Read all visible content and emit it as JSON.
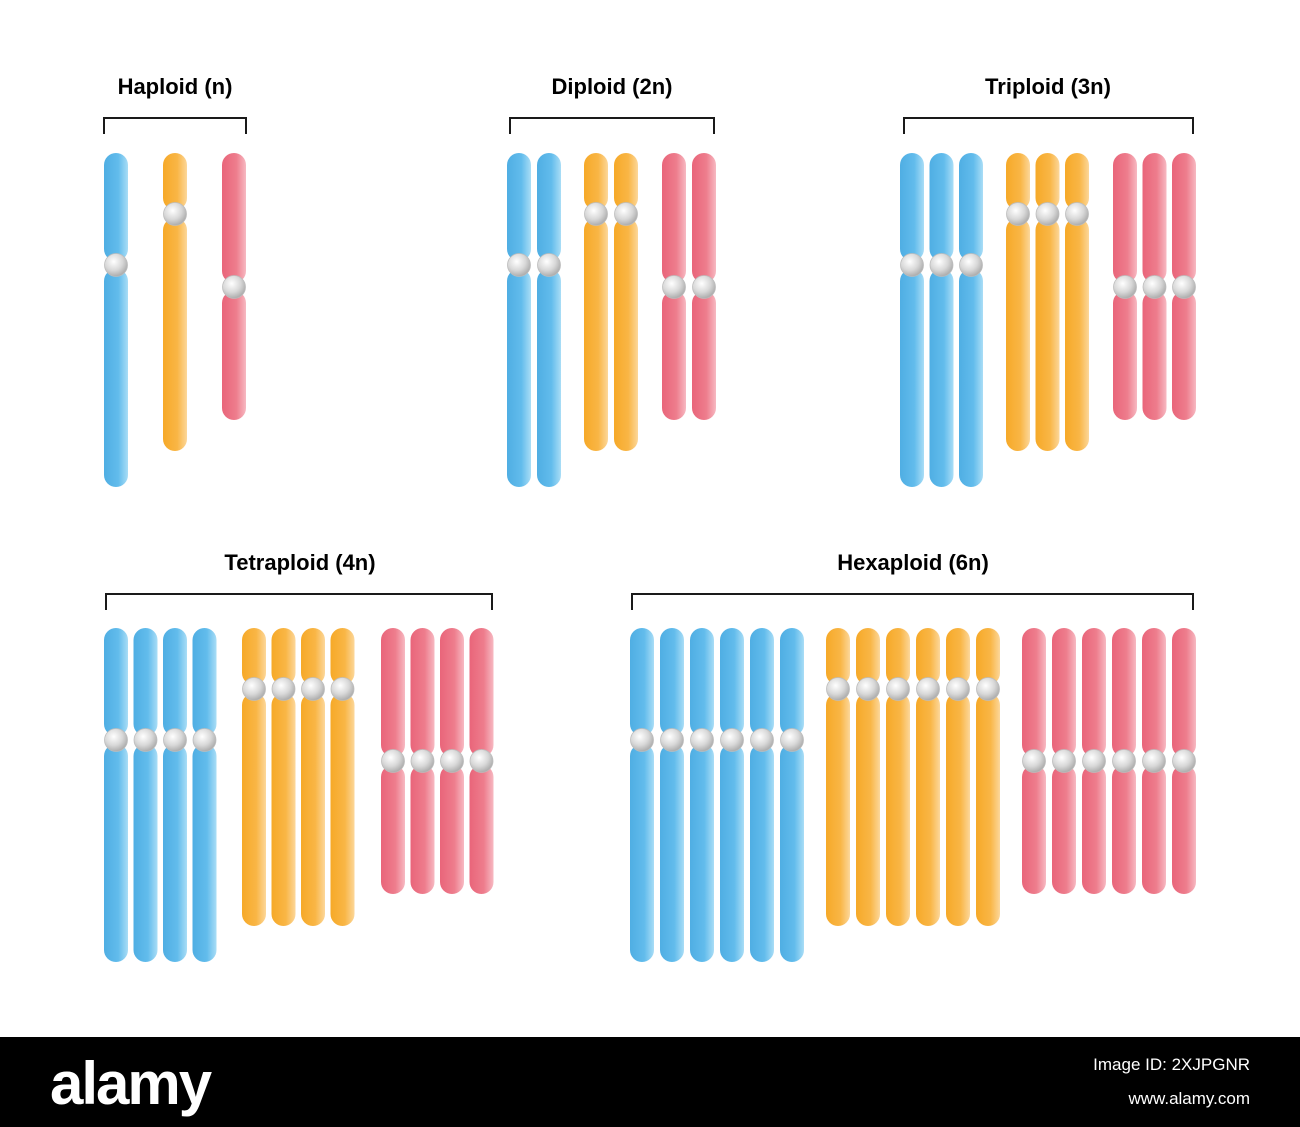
{
  "colors": {
    "blue": "#5BB8EA",
    "orange": "#F8B03C",
    "red": "#EC6E80",
    "centromere": "#D6D6D6",
    "bracket": "#1a1a1a"
  },
  "panels": [
    {
      "id": "haploid",
      "title": "Haploid (n)",
      "ploidy": 1
    },
    {
      "id": "diploid",
      "title": "Diploid (2n)",
      "ploidy": 2
    },
    {
      "id": "triploid",
      "title": "Triploid (3n)",
      "ploidy": 3
    },
    {
      "id": "tetraploid",
      "title": "Tetraploid (4n)",
      "ploidy": 4
    },
    {
      "id": "hexaploid",
      "title": "Hexaploid (6n)",
      "ploidy": 6
    }
  ],
  "chromosome_types": [
    {
      "name": "blue-chromosome",
      "color_key": "blue"
    },
    {
      "name": "orange-chromosome",
      "color_key": "orange"
    },
    {
      "name": "red-chromosome",
      "color_key": "red"
    }
  ],
  "footer": {
    "logo": "alamy",
    "image_id": "Image ID: 2XJPGNR",
    "url": "www.alamy.com"
  }
}
